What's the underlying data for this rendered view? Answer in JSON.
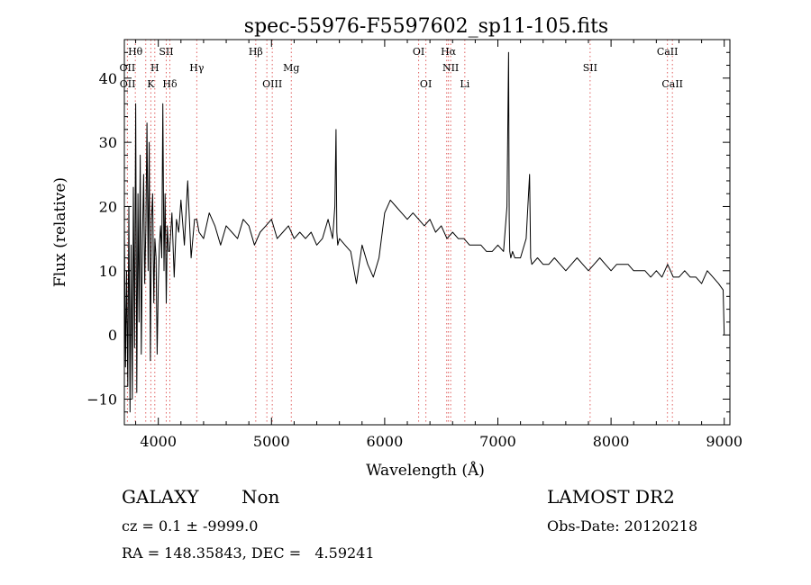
{
  "chart_data": {
    "type": "line",
    "title": "spec-55976-F5597602_sp11-105.fits",
    "xlabel": "Wavelength (Å)",
    "ylabel": "Flux (relative)",
    "xlim": [
      3700,
      9050
    ],
    "ylim": [
      -14,
      46
    ],
    "xticks": [
      4000,
      5000,
      6000,
      7000,
      8000,
      9000
    ],
    "yticks": [
      -10,
      0,
      10,
      20,
      30,
      40
    ],
    "line_color": "#000000",
    "marker_color": "#e06060",
    "series": [
      {
        "values_x": [
          3700,
          3710,
          3720,
          3730,
          3740,
          3750,
          3760,
          3770,
          3780,
          3790,
          3800,
          3810,
          3820,
          3830,
          3840,
          3850,
          3860,
          3870,
          3880,
          3890,
          3900,
          3910,
          3920,
          3930,
          3940,
          3950,
          3960,
          3970,
          3980,
          3990,
          4000,
          4010,
          4020,
          4030,
          4040,
          4050,
          4060,
          4070,
          4080,
          4090,
          4100,
          4120,
          4140,
          4160,
          4180,
          4200,
          4230,
          4260,
          4290,
          4320,
          4340,
          4360,
          4400,
          4450,
          4500,
          4550,
          4600,
          4650,
          4700,
          4750,
          4800,
          4850,
          4900,
          4950,
          5000,
          5050,
          5100,
          5150,
          5200,
          5250,
          5300,
          5350,
          5400,
          5450,
          5500,
          5540,
          5560,
          5570,
          5577,
          5585,
          5600,
          5650,
          5700,
          5750,
          5800,
          5850,
          5900,
          5950,
          6000,
          6050,
          6100,
          6150,
          6200,
          6250,
          6300,
          6350,
          6400,
          6450,
          6500,
          6550,
          6600,
          6650,
          6700,
          6750,
          6800,
          6850,
          6900,
          6950,
          7000,
          7050,
          7080,
          7095,
          7100,
          7105,
          7115,
          7130,
          7150,
          7200,
          7250,
          7280,
          7290,
          7300,
          7350,
          7400,
          7450,
          7500,
          7550,
          7600,
          7650,
          7700,
          7750,
          7800,
          7850,
          7900,
          7950,
          8000,
          8050,
          8100,
          8150,
          8200,
          8250,
          8300,
          8350,
          8400,
          8450,
          8500,
          8550,
          8600,
          8650,
          8700,
          8750,
          8800,
          8850,
          8900,
          8950,
          8990,
          9000
        ],
        "values_y": [
          17,
          -5,
          10,
          -8,
          20,
          -12,
          14,
          -10,
          23,
          -2,
          36,
          -9,
          22,
          2,
          28,
          -3,
          15,
          25,
          8,
          17,
          33,
          10,
          30,
          -4,
          18,
          22,
          5,
          15,
          12,
          -3,
          8,
          14,
          17,
          12,
          36,
          10,
          22,
          5,
          17,
          13,
          13,
          19,
          9,
          18,
          16,
          21,
          14,
          24,
          12,
          18,
          18,
          16,
          15,
          19,
          17,
          14,
          17,
          16,
          15,
          18,
          17,
          14,
          16,
          17,
          18,
          15,
          16,
          17,
          15,
          16,
          15,
          16,
          14,
          15,
          18,
          15,
          20,
          32,
          16,
          14,
          15,
          14,
          13,
          8,
          14,
          11,
          9,
          12,
          19,
          21,
          20,
          19,
          18,
          19,
          18,
          17,
          18,
          16,
          17,
          15,
          16,
          15,
          15,
          14,
          14,
          14,
          13,
          13,
          14,
          13,
          20,
          44,
          18,
          13,
          12,
          13,
          12,
          12,
          15,
          25,
          12,
          11,
          12,
          11,
          11,
          12,
          11,
          10,
          11,
          12,
          11,
          10,
          11,
          12,
          11,
          10,
          11,
          11,
          11,
          10,
          10,
          10,
          9,
          10,
          9,
          11,
          9,
          9,
          10,
          9,
          9,
          8,
          10,
          9,
          8,
          7,
          0
        ]
      }
    ],
    "line_markers": [
      {
        "label": "Hθ",
        "x": 3797,
        "row": 0
      },
      {
        "label": "SII",
        "x": 4070,
        "row": 0
      },
      {
        "label": "Hβ",
        "x": 4861,
        "row": 0
      },
      {
        "label": "OI",
        "x": 6300,
        "row": 0
      },
      {
        "label": "Hα",
        "x": 6563,
        "row": 0
      },
      {
        "label": "CaII",
        "x": 8498,
        "row": 0
      },
      {
        "label": "OII",
        "x": 3727,
        "row": 1
      },
      {
        "label": "H",
        "x": 3969,
        "row": 1
      },
      {
        "label": "Hγ",
        "x": 4340,
        "row": 1
      },
      {
        "label": "Mg",
        "x": 5175,
        "row": 1
      },
      {
        "label": "NII",
        "x": 6583,
        "row": 1
      },
      {
        "label": "SII",
        "x": 7815,
        "row": 1
      },
      {
        "label": "OII",
        "x": 3729,
        "row": 2
      },
      {
        "label": "K",
        "x": 3934,
        "row": 2
      },
      {
        "label": "Hδ",
        "x": 4102,
        "row": 2
      },
      {
        "label": "OIII",
        "x": 5007,
        "row": 2
      },
      {
        "label": "OI",
        "x": 6364,
        "row": 2
      },
      {
        "label": "Li",
        "x": 6708,
        "row": 2
      },
      {
        "label": "CaII",
        "x": 8542,
        "row": 2
      }
    ],
    "marker_lines_x": [
      3727,
      3797,
      3889,
      3934,
      3969,
      4070,
      4102,
      4340,
      4861,
      4959,
      5007,
      5175,
      6300,
      6364,
      6548,
      6563,
      6583,
      6708,
      7815,
      8498,
      8542
    ]
  },
  "info": {
    "object_class": "GALAXY",
    "subclass": "Non",
    "survey": "LAMOST DR2",
    "redshift": "cz = 0.1 ± -9999.0",
    "obs_date": "Obs-Date: 20120218",
    "coords": "RA = 148.35843, DEC =   4.59241"
  }
}
